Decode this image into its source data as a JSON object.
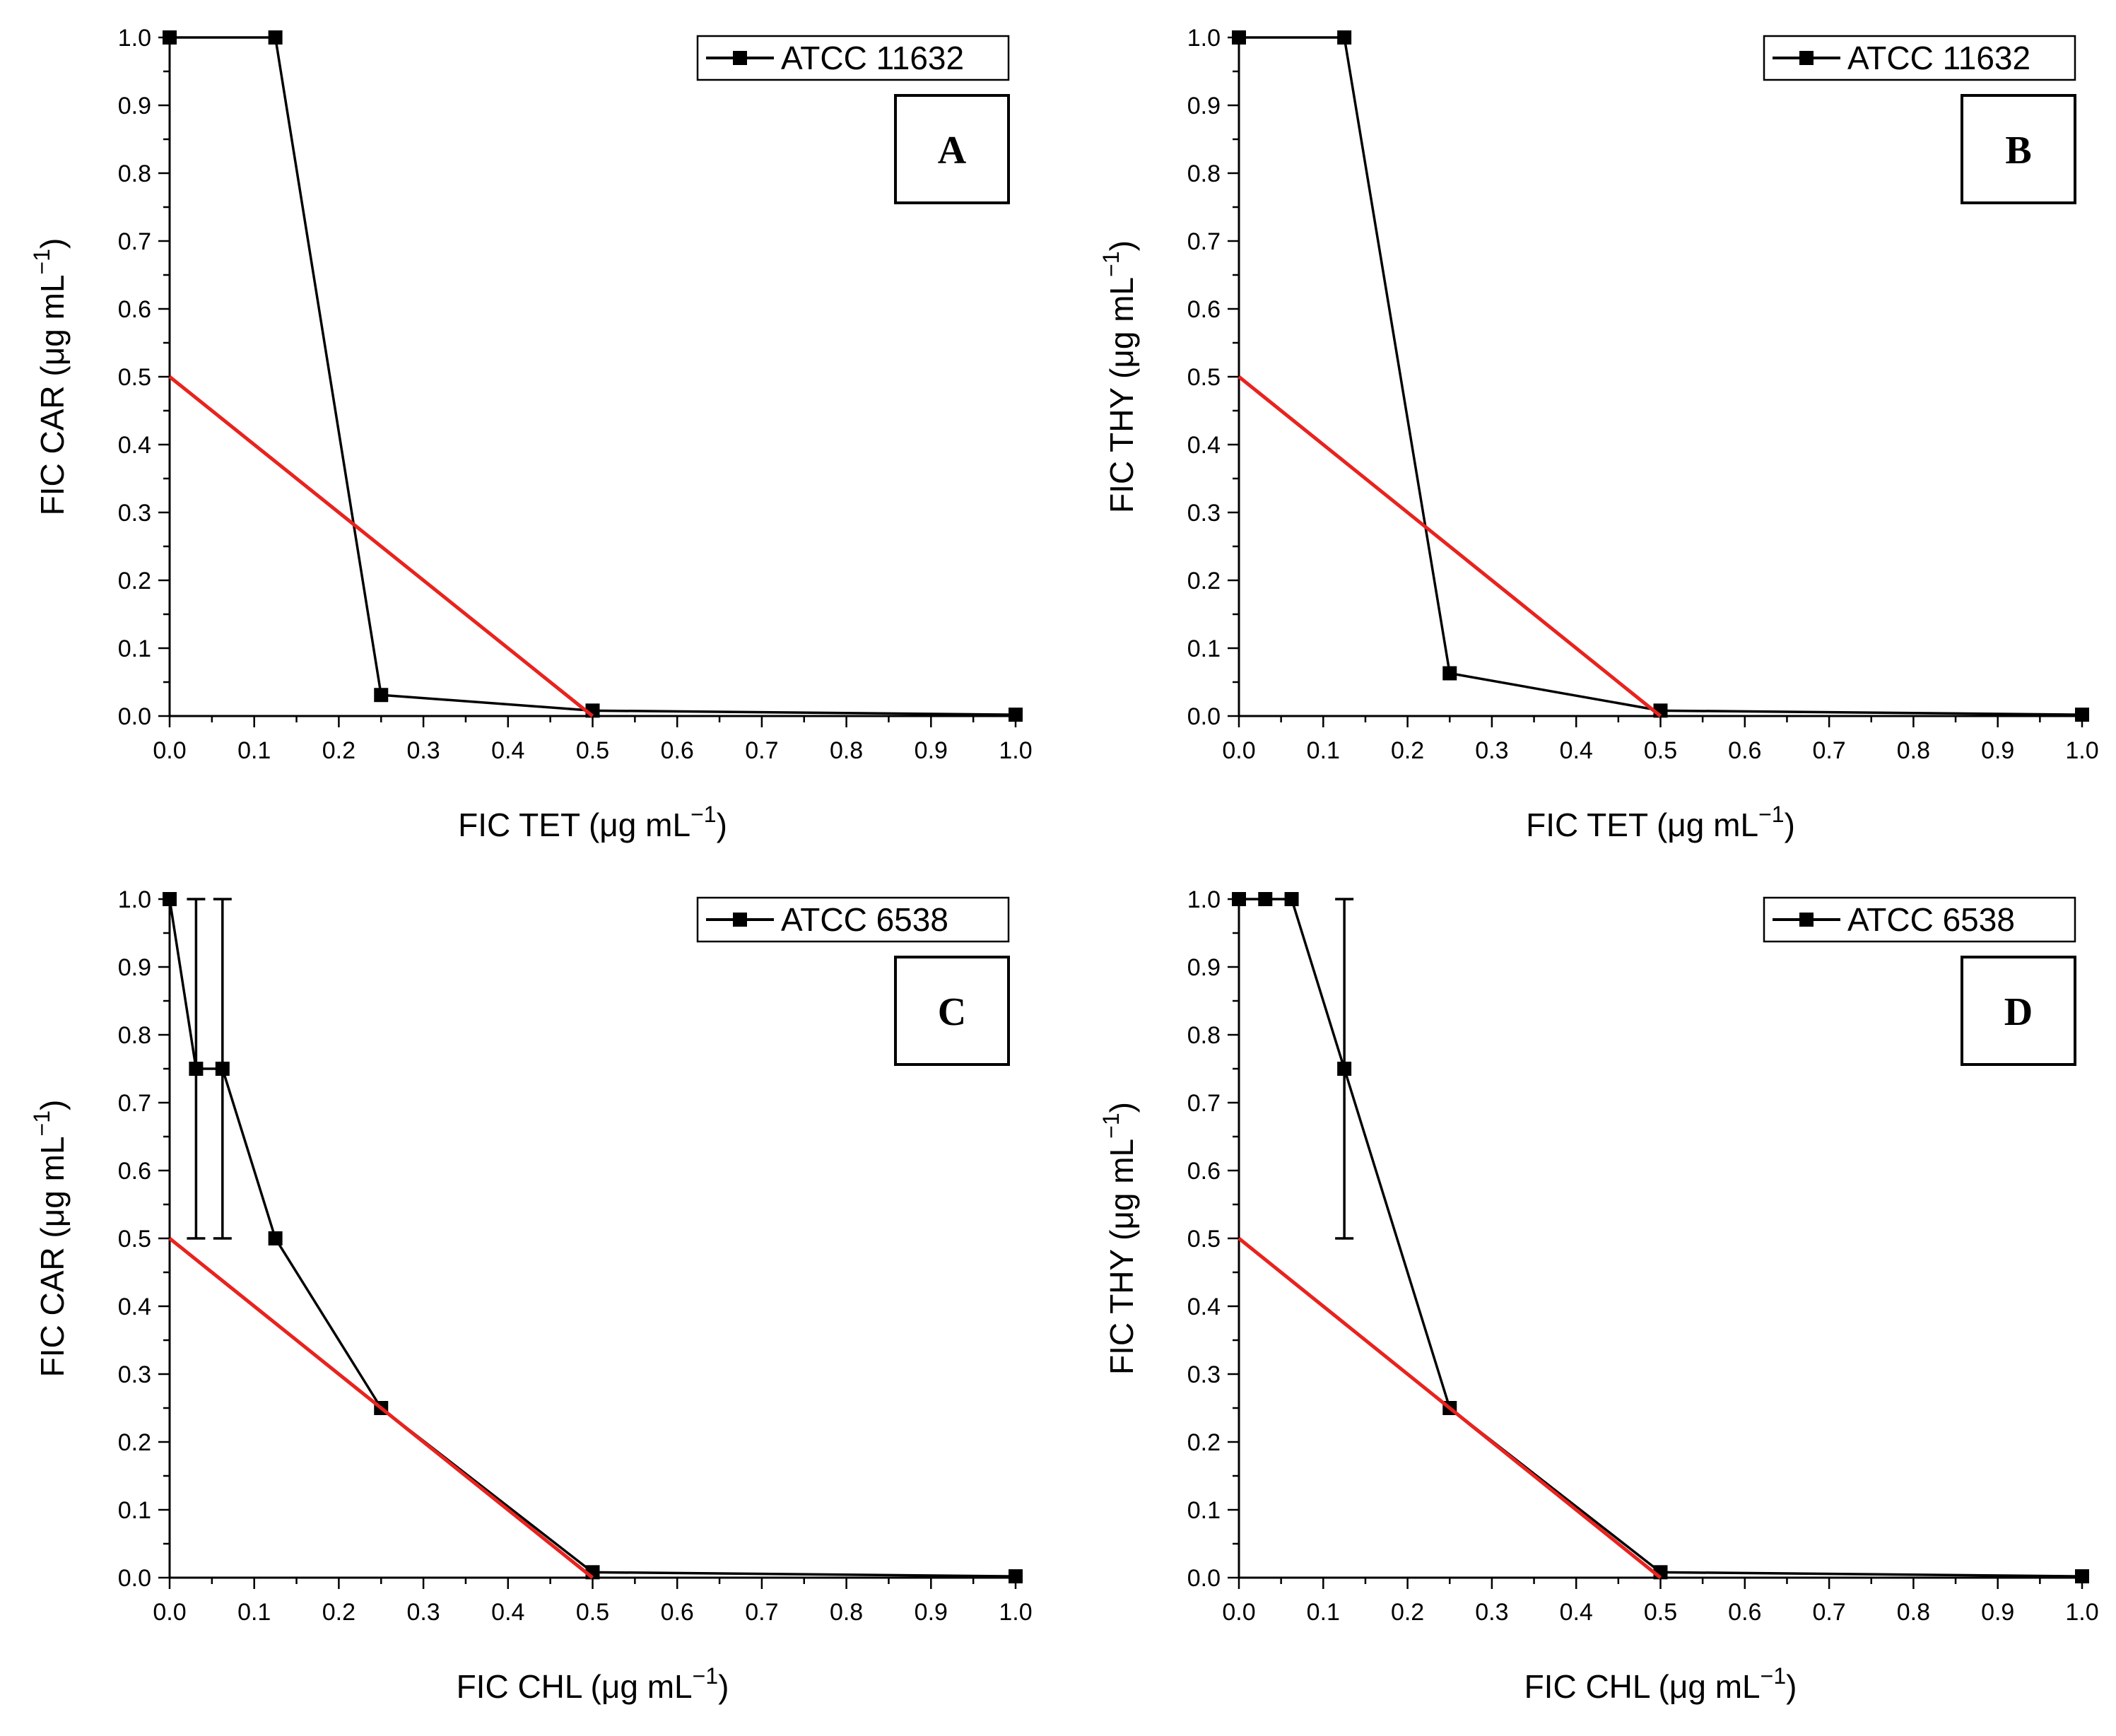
{
  "chart_data": [
    {
      "type": "line",
      "panel": "A",
      "xlabel": "FIC TET (μg mL",
      "ylabel": "FIC CAR (μg mL",
      "unit_superscript": "−1",
      "xlim": [
        0,
        1
      ],
      "ylim": [
        0,
        1
      ],
      "xticks": [
        "0.0",
        "0.1",
        "0.2",
        "0.3",
        "0.4",
        "0.5",
        "0.6",
        "0.7",
        "0.8",
        "0.9",
        "1.0"
      ],
      "yticks": [
        "0.0",
        "0.1",
        "0.2",
        "0.3",
        "0.4",
        "0.5",
        "0.6",
        "0.7",
        "0.8",
        "0.9",
        "1.0"
      ],
      "legend": "ATCC 11632",
      "legend_position": "top-right",
      "series": [
        {
          "name": "ATCC 11632",
          "color": "#000000",
          "marker": "square",
          "x": [
            0,
            0.125,
            0.25,
            0.5,
            1.0
          ],
          "y": [
            1.0,
            1.0,
            0.031,
            0.008,
            0.002
          ],
          "yerr": [
            0,
            0,
            0,
            0,
            0
          ]
        },
        {
          "name": "reference line",
          "color": "#e8231f",
          "marker": "none",
          "x": [
            0,
            0.5
          ],
          "y": [
            0.5,
            0
          ]
        }
      ]
    },
    {
      "type": "line",
      "panel": "B",
      "xlabel": "FIC TET (μg mL",
      "ylabel": "FIC THY (μg mL",
      "unit_superscript": "−1",
      "xlim": [
        0,
        1
      ],
      "ylim": [
        0,
        1
      ],
      "xticks": [
        "0.0",
        "0.1",
        "0.2",
        "0.3",
        "0.4",
        "0.5",
        "0.6",
        "0.7",
        "0.8",
        "0.9",
        "1.0"
      ],
      "yticks": [
        "0.0",
        "0.1",
        "0.2",
        "0.3",
        "0.4",
        "0.5",
        "0.6",
        "0.7",
        "0.8",
        "0.9",
        "1.0"
      ],
      "legend": "ATCC 11632",
      "legend_position": "top-right",
      "series": [
        {
          "name": "ATCC 11632",
          "color": "#000000",
          "marker": "square",
          "x": [
            0,
            0.125,
            0.25,
            0.5,
            1.0
          ],
          "y": [
            1.0,
            1.0,
            0.063,
            0.008,
            0.002
          ],
          "yerr": [
            0,
            0,
            0,
            0,
            0
          ]
        },
        {
          "name": "reference line",
          "color": "#e8231f",
          "marker": "none",
          "x": [
            0,
            0.5
          ],
          "y": [
            0.5,
            0
          ]
        }
      ]
    },
    {
      "type": "line",
      "panel": "C",
      "xlabel": "FIC CHL (μg mL",
      "ylabel": "FIC CAR (μg mL",
      "unit_superscript": "−1",
      "xlim": [
        0,
        1
      ],
      "ylim": [
        0,
        1
      ],
      "xticks": [
        "0.0",
        "0.1",
        "0.2",
        "0.3",
        "0.4",
        "0.5",
        "0.6",
        "0.7",
        "0.8",
        "0.9",
        "1.0"
      ],
      "yticks": [
        "0.0",
        "0.1",
        "0.2",
        "0.3",
        "0.4",
        "0.5",
        "0.6",
        "0.7",
        "0.8",
        "0.9",
        "1.0"
      ],
      "legend": "ATCC 6538",
      "legend_position": "top-right",
      "series": [
        {
          "name": "ATCC 6538",
          "color": "#000000",
          "marker": "square",
          "x": [
            0,
            0.03125,
            0.0625,
            0.125,
            0.25,
            0.5,
            1.0
          ],
          "y": [
            1.0,
            0.75,
            0.75,
            0.5,
            0.25,
            0.008,
            0.002
          ],
          "yerr": [
            0,
            0.25,
            0.25,
            0,
            0,
            0,
            0
          ]
        },
        {
          "name": "reference line",
          "color": "#e8231f",
          "marker": "none",
          "x": [
            0,
            0.5
          ],
          "y": [
            0.5,
            0
          ]
        }
      ]
    },
    {
      "type": "line",
      "panel": "D",
      "xlabel": "FIC CHL (μg mL",
      "ylabel": "FIC THY (μg mL",
      "unit_superscript": "−1",
      "xlim": [
        0,
        1
      ],
      "ylim": [
        0,
        1
      ],
      "xticks": [
        "0.0",
        "0.1",
        "0.2",
        "0.3",
        "0.4",
        "0.5",
        "0.6",
        "0.7",
        "0.8",
        "0.9",
        "1.0"
      ],
      "yticks": [
        "0.0",
        "0.1",
        "0.2",
        "0.3",
        "0.4",
        "0.5",
        "0.6",
        "0.7",
        "0.8",
        "0.9",
        "1.0"
      ],
      "legend": "ATCC 6538",
      "legend_position": "top-right",
      "series": [
        {
          "name": "ATCC 6538",
          "color": "#000000",
          "marker": "square",
          "x": [
            0,
            0.03125,
            0.0625,
            0.125,
            0.25,
            0.5,
            1.0
          ],
          "y": [
            1.0,
            1.0,
            1.0,
            0.75,
            0.25,
            0.008,
            0.002
          ],
          "yerr": [
            0,
            0,
            0,
            0.25,
            0,
            0,
            0
          ]
        },
        {
          "name": "reference line",
          "color": "#e8231f",
          "marker": "none",
          "x": [
            0,
            0.5
          ],
          "y": [
            0.5,
            0
          ]
        }
      ]
    }
  ]
}
